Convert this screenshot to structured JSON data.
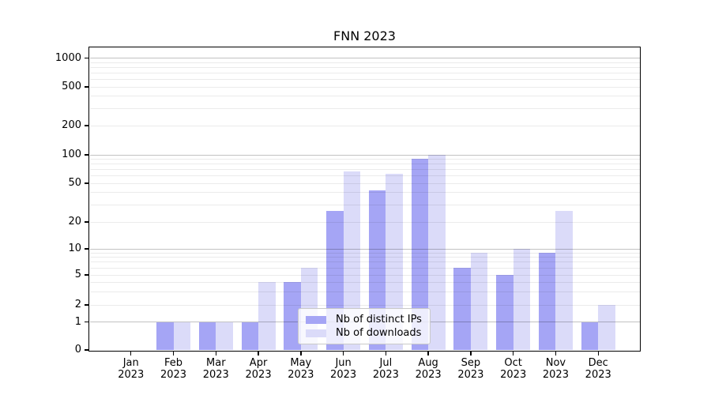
{
  "chart_data": {
    "type": "bar",
    "title": "FNN 2023",
    "categories": [
      {
        "month": "Jan",
        "year": "2023"
      },
      {
        "month": "Feb",
        "year": "2023"
      },
      {
        "month": "Mar",
        "year": "2023"
      },
      {
        "month": "Apr",
        "year": "2023"
      },
      {
        "month": "May",
        "year": "2023"
      },
      {
        "month": "Jun",
        "year": "2023"
      },
      {
        "month": "Jul",
        "year": "2023"
      },
      {
        "month": "Aug",
        "year": "2023"
      },
      {
        "month": "Sep",
        "year": "2023"
      },
      {
        "month": "Oct",
        "year": "2023"
      },
      {
        "month": "Nov",
        "year": "2023"
      },
      {
        "month": "Dec",
        "year": "2023"
      }
    ],
    "series": [
      {
        "name": "Nb of distinct IPs",
        "color": "#a5a5f5",
        "values": [
          0,
          1,
          1,
          1,
          4,
          26,
          42,
          90,
          6,
          5,
          9,
          1
        ]
      },
      {
        "name": "Nb of downloads",
        "color": "#dbdbf9",
        "values": [
          0,
          1,
          1,
          4,
          6,
          67,
          63,
          100,
          9,
          10,
          26,
          2
        ]
      }
    ],
    "yscale": "symlog",
    "yticks": [
      0,
      1,
      2,
      5,
      10,
      20,
      50,
      100,
      200,
      500,
      1000
    ],
    "ylim": [
      0,
      1300
    ],
    "grid": true,
    "legend": {
      "position": "lower center"
    }
  }
}
